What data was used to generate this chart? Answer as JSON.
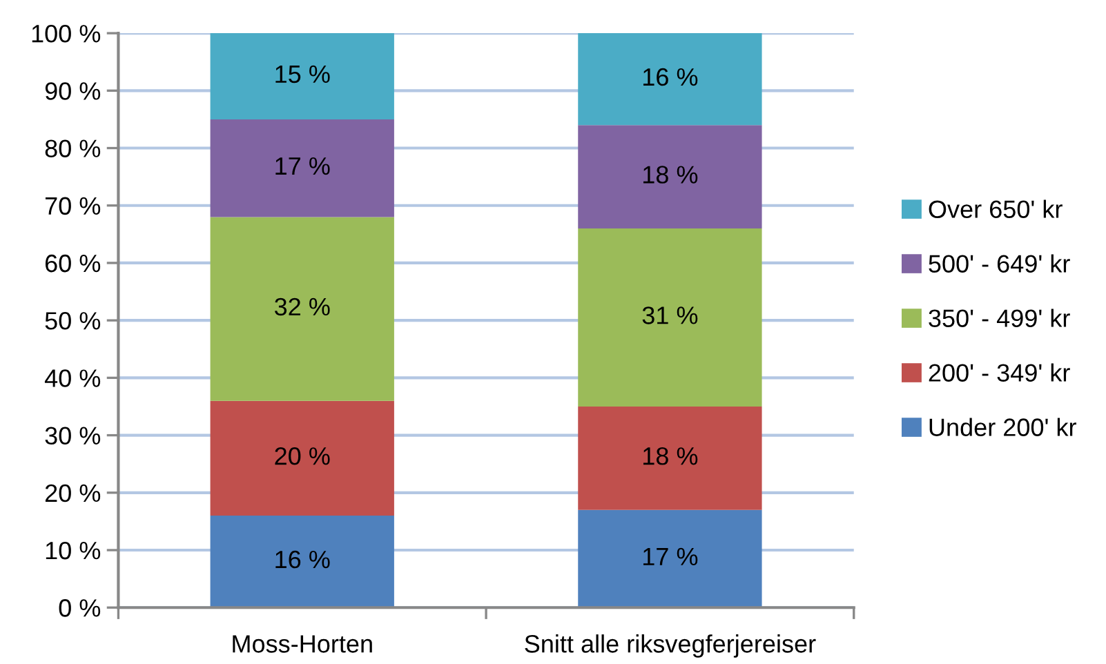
{
  "chart_data": {
    "type": "bar",
    "stacked": true,
    "categories": [
      "Moss-Horten",
      "Snitt alle riksvegferjereiser"
    ],
    "series": [
      {
        "name": "Under 200' kr",
        "color": "#4f81bd",
        "values": [
          16,
          17
        ],
        "value_labels": [
          "16 %",
          "17 %"
        ]
      },
      {
        "name": "200' - 349' kr",
        "color": "#c0504d",
        "values": [
          20,
          18
        ],
        "value_labels": [
          "20 %",
          "18 %"
        ]
      },
      {
        "name": "350' - 499' kr",
        "color": "#9bbb59",
        "values": [
          32,
          31
        ],
        "value_labels": [
          "32 %",
          "31 %"
        ]
      },
      {
        "name": "500' - 649' kr",
        "color": "#8064a2",
        "values": [
          17,
          18
        ],
        "value_labels": [
          "17 %",
          "18 %"
        ]
      },
      {
        "name": "Over 650' kr",
        "color": "#4bacc6",
        "values": [
          15,
          16
        ],
        "value_labels": [
          "15 %",
          "16 %"
        ]
      }
    ],
    "ylim": [
      0,
      100
    ],
    "yticks": [
      {
        "value": 0,
        "label": "0 %"
      },
      {
        "value": 10,
        "label": "10 %"
      },
      {
        "value": 20,
        "label": "20 %"
      },
      {
        "value": 30,
        "label": "30 %"
      },
      {
        "value": 40,
        "label": "40 %"
      },
      {
        "value": 50,
        "label": "50 %"
      },
      {
        "value": 60,
        "label": "60 %"
      },
      {
        "value": 70,
        "label": "70 %"
      },
      {
        "value": 80,
        "label": "80 %"
      },
      {
        "value": 90,
        "label": "90 %"
      },
      {
        "value": 100,
        "label": "100 %"
      }
    ],
    "grid": "y",
    "legend": "right"
  }
}
